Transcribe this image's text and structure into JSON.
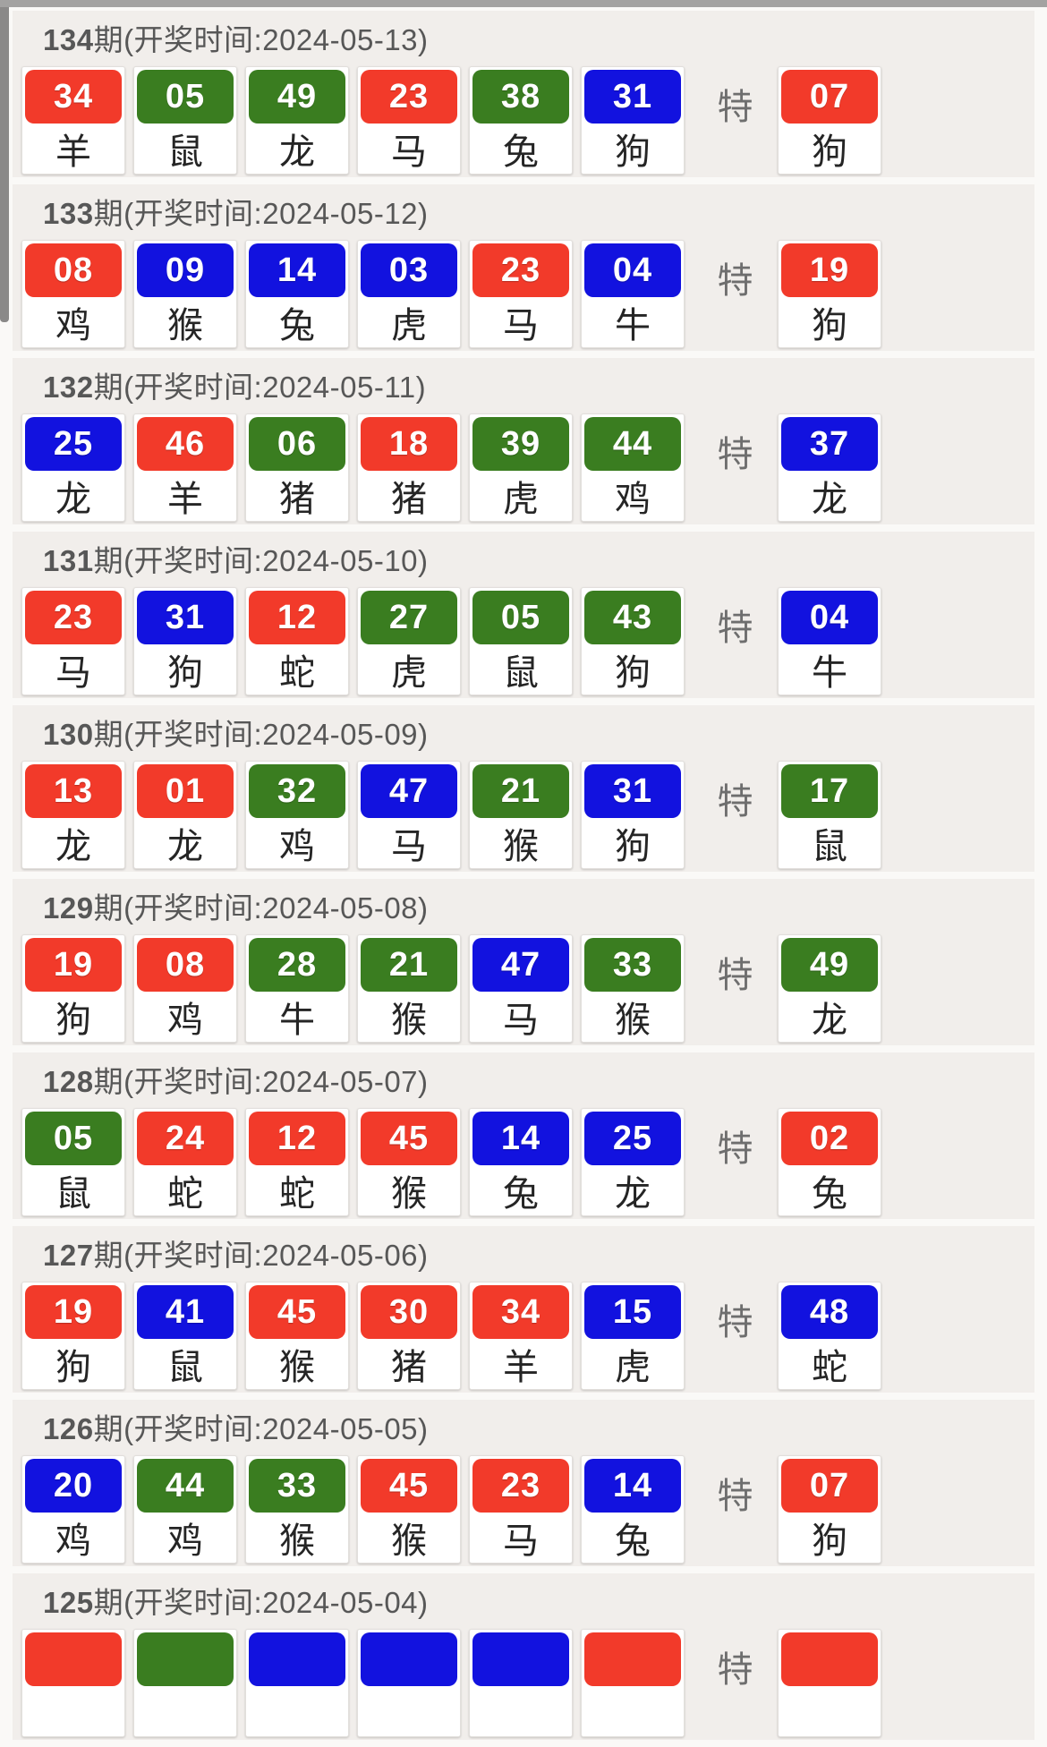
{
  "special_label": "特",
  "colors": {
    "red": "#f23a2a",
    "green": "#3a7d20",
    "blue": "#1212df"
  },
  "rows": [
    {
      "period_num": "134",
      "period_suffix": "期(开奖时间:2024-05-13)",
      "numbers": [
        {
          "num": "34",
          "color": "red",
          "zodiac": "羊"
        },
        {
          "num": "05",
          "color": "green",
          "zodiac": "鼠"
        },
        {
          "num": "49",
          "color": "green",
          "zodiac": "龙"
        },
        {
          "num": "23",
          "color": "red",
          "zodiac": "马"
        },
        {
          "num": "38",
          "color": "green",
          "zodiac": "兔"
        },
        {
          "num": "31",
          "color": "blue",
          "zodiac": "狗"
        }
      ],
      "special": {
        "num": "07",
        "color": "red",
        "zodiac": "狗"
      }
    },
    {
      "period_num": "133",
      "period_suffix": "期(开奖时间:2024-05-12)",
      "numbers": [
        {
          "num": "08",
          "color": "red",
          "zodiac": "鸡"
        },
        {
          "num": "09",
          "color": "blue",
          "zodiac": "猴"
        },
        {
          "num": "14",
          "color": "blue",
          "zodiac": "兔"
        },
        {
          "num": "03",
          "color": "blue",
          "zodiac": "虎"
        },
        {
          "num": "23",
          "color": "red",
          "zodiac": "马"
        },
        {
          "num": "04",
          "color": "blue",
          "zodiac": "牛"
        }
      ],
      "special": {
        "num": "19",
        "color": "red",
        "zodiac": "狗"
      }
    },
    {
      "period_num": "132",
      "period_suffix": "期(开奖时间:2024-05-11)",
      "numbers": [
        {
          "num": "25",
          "color": "blue",
          "zodiac": "龙"
        },
        {
          "num": "46",
          "color": "red",
          "zodiac": "羊"
        },
        {
          "num": "06",
          "color": "green",
          "zodiac": "猪"
        },
        {
          "num": "18",
          "color": "red",
          "zodiac": "猪"
        },
        {
          "num": "39",
          "color": "green",
          "zodiac": "虎"
        },
        {
          "num": "44",
          "color": "green",
          "zodiac": "鸡"
        }
      ],
      "special": {
        "num": "37",
        "color": "blue",
        "zodiac": "龙"
      }
    },
    {
      "period_num": "131",
      "period_suffix": "期(开奖时间:2024-05-10)",
      "numbers": [
        {
          "num": "23",
          "color": "red",
          "zodiac": "马"
        },
        {
          "num": "31",
          "color": "blue",
          "zodiac": "狗"
        },
        {
          "num": "12",
          "color": "red",
          "zodiac": "蛇"
        },
        {
          "num": "27",
          "color": "green",
          "zodiac": "虎"
        },
        {
          "num": "05",
          "color": "green",
          "zodiac": "鼠"
        },
        {
          "num": "43",
          "color": "green",
          "zodiac": "狗"
        }
      ],
      "special": {
        "num": "04",
        "color": "blue",
        "zodiac": "牛"
      }
    },
    {
      "period_num": "130",
      "period_suffix": "期(开奖时间:2024-05-09)",
      "numbers": [
        {
          "num": "13",
          "color": "red",
          "zodiac": "龙"
        },
        {
          "num": "01",
          "color": "red",
          "zodiac": "龙"
        },
        {
          "num": "32",
          "color": "green",
          "zodiac": "鸡"
        },
        {
          "num": "47",
          "color": "blue",
          "zodiac": "马"
        },
        {
          "num": "21",
          "color": "green",
          "zodiac": "猴"
        },
        {
          "num": "31",
          "color": "blue",
          "zodiac": "狗"
        }
      ],
      "special": {
        "num": "17",
        "color": "green",
        "zodiac": "鼠"
      }
    },
    {
      "period_num": "129",
      "period_suffix": "期(开奖时间:2024-05-08)",
      "numbers": [
        {
          "num": "19",
          "color": "red",
          "zodiac": "狗"
        },
        {
          "num": "08",
          "color": "red",
          "zodiac": "鸡"
        },
        {
          "num": "28",
          "color": "green",
          "zodiac": "牛"
        },
        {
          "num": "21",
          "color": "green",
          "zodiac": "猴"
        },
        {
          "num": "47",
          "color": "blue",
          "zodiac": "马"
        },
        {
          "num": "33",
          "color": "green",
          "zodiac": "猴"
        }
      ],
      "special": {
        "num": "49",
        "color": "green",
        "zodiac": "龙"
      }
    },
    {
      "period_num": "128",
      "period_suffix": "期(开奖时间:2024-05-07)",
      "numbers": [
        {
          "num": "05",
          "color": "green",
          "zodiac": "鼠"
        },
        {
          "num": "24",
          "color": "red",
          "zodiac": "蛇"
        },
        {
          "num": "12",
          "color": "red",
          "zodiac": "蛇"
        },
        {
          "num": "45",
          "color": "red",
          "zodiac": "猴"
        },
        {
          "num": "14",
          "color": "blue",
          "zodiac": "兔"
        },
        {
          "num": "25",
          "color": "blue",
          "zodiac": "龙"
        }
      ],
      "special": {
        "num": "02",
        "color": "red",
        "zodiac": "兔"
      }
    },
    {
      "period_num": "127",
      "period_suffix": "期(开奖时间:2024-05-06)",
      "numbers": [
        {
          "num": "19",
          "color": "red",
          "zodiac": "狗"
        },
        {
          "num": "41",
          "color": "blue",
          "zodiac": "鼠"
        },
        {
          "num": "45",
          "color": "red",
          "zodiac": "猴"
        },
        {
          "num": "30",
          "color": "red",
          "zodiac": "猪"
        },
        {
          "num": "34",
          "color": "red",
          "zodiac": "羊"
        },
        {
          "num": "15",
          "color": "blue",
          "zodiac": "虎"
        }
      ],
      "special": {
        "num": "48",
        "color": "blue",
        "zodiac": "蛇"
      }
    },
    {
      "period_num": "126",
      "period_suffix": "期(开奖时间:2024-05-05)",
      "numbers": [
        {
          "num": "20",
          "color": "blue",
          "zodiac": "鸡"
        },
        {
          "num": "44",
          "color": "green",
          "zodiac": "鸡"
        },
        {
          "num": "33",
          "color": "green",
          "zodiac": "猴"
        },
        {
          "num": "45",
          "color": "red",
          "zodiac": "猴"
        },
        {
          "num": "23",
          "color": "red",
          "zodiac": "马"
        },
        {
          "num": "14",
          "color": "blue",
          "zodiac": "兔"
        }
      ],
      "special": {
        "num": "07",
        "color": "red",
        "zodiac": "狗"
      }
    },
    {
      "period_num": "125",
      "period_suffix": "期(开奖时间:2024-05-04)",
      "numbers": [
        {
          "num": "",
          "color": "red",
          "zodiac": ""
        },
        {
          "num": "",
          "color": "green",
          "zodiac": ""
        },
        {
          "num": "",
          "color": "blue",
          "zodiac": ""
        },
        {
          "num": "",
          "color": "blue",
          "zodiac": ""
        },
        {
          "num": "",
          "color": "blue",
          "zodiac": ""
        },
        {
          "num": "",
          "color": "red",
          "zodiac": ""
        }
      ],
      "special": {
        "num": "",
        "color": "red",
        "zodiac": ""
      }
    }
  ]
}
